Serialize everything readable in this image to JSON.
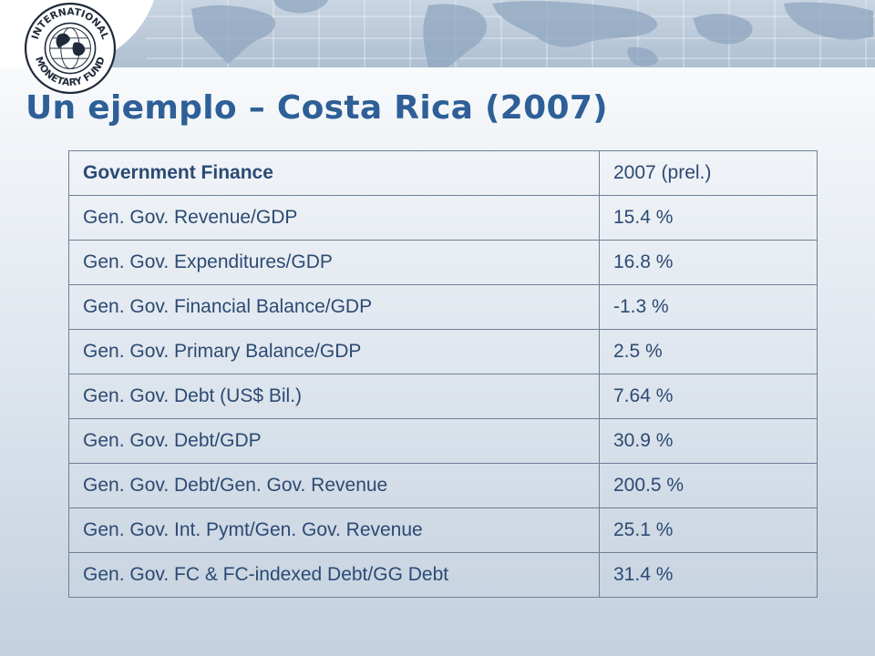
{
  "header": {
    "logo_icon": "imf-seal-icon",
    "logo_text": "INTERNATIONAL MONETARY FUND"
  },
  "slide": {
    "title": "Un ejemplo – Costa Rica (2007)"
  },
  "table": {
    "header": [
      "Government Finance",
      "2007 (prel.)"
    ],
    "rows": [
      [
        "Gen. Gov. Revenue/GDP",
        "15.4 %"
      ],
      [
        "Gen. Gov. Expenditures/GDP",
        "16.8 %"
      ],
      [
        "Gen. Gov. Financial Balance/GDP",
        "-1.3 %"
      ],
      [
        "Gen. Gov. Primary Balance/GDP",
        "2.5 %"
      ],
      [
        "Gen. Gov. Debt (US$ Bil.)",
        "7.64 %"
      ],
      [
        "Gen. Gov. Debt/GDP",
        "30.9 %"
      ],
      [
        "Gen. Gov. Debt/Gen. Gov. Revenue",
        "200.5 %"
      ],
      [
        "Gen. Gov. Int. Pymt/Gen. Gov. Revenue",
        "25.1 %"
      ],
      [
        "Gen. Gov. FC & FC-indexed Debt/GG Debt",
        "31.4 %"
      ]
    ]
  },
  "colors": {
    "title": "#2e5f97",
    "text": "#2c4a73",
    "border": "#6f7f95",
    "banner": "#b6c6d8"
  }
}
